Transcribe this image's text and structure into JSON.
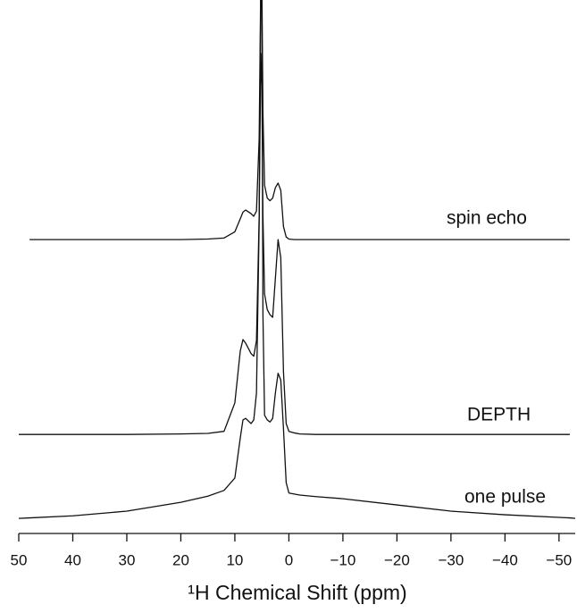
{
  "chart_data": {
    "type": "line",
    "xlabel": "¹H Chemical Shift (ppm)",
    "xlim": [
      50,
      -53
    ],
    "ylim": [
      0,
      100
    ],
    "xticks": [
      50,
      40,
      30,
      20,
      10,
      0,
      {
        "value": -10,
        "label": "−10"
      },
      {
        "value": -20,
        "label": "−20"
      },
      {
        "value": -30,
        "label": "−30"
      },
      {
        "value": -40,
        "label": "−40"
      },
      {
        "value": -50,
        "label": "−50"
      }
    ],
    "x": [
      50,
      48,
      40,
      30,
      20,
      15,
      12,
      10,
      9,
      8.5,
      8,
      7,
      6.5,
      6,
      5.5,
      5.2,
      5,
      4.8,
      4.5,
      4,
      3.5,
      3,
      2.5,
      2,
      1.5,
      1,
      0.5,
      0,
      -1,
      -2,
      -5,
      -10,
      -20,
      -30,
      -40,
      -50,
      -52,
      -53
    ],
    "series": [
      {
        "name": "spin echo",
        "color": "#111111",
        "values": [
          null,
          55.5,
          55.5,
          55.5,
          55.5,
          55.6,
          55.8,
          57,
          59.5,
          60.8,
          61.2,
          60.5,
          60,
          61,
          75,
          105,
          105,
          80,
          66,
          63.5,
          63,
          63.5,
          65.5,
          66.4,
          65,
          58,
          56,
          55.6,
          55.5,
          55.5,
          55.5,
          55.5,
          55.5,
          55.5,
          55.5,
          55.5,
          55.5,
          null
        ]
      },
      {
        "name": "DEPTH",
        "color": "#111111",
        "values": [
          17.9,
          17.9,
          17.9,
          17.9,
          18,
          18.1,
          18.5,
          24,
          34,
          36.2,
          35.5,
          33.5,
          33,
          36,
          60,
          91.4,
          85,
          60,
          45,
          42,
          41,
          40.5,
          48,
          55.5,
          52,
          30,
          20,
          18.5,
          18.2,
          18,
          17.9,
          17.9,
          17.9,
          17.9,
          17.9,
          17.9,
          17.9,
          null
        ]
      },
      {
        "name": "one pulse",
        "color": "#111111",
        "values": [
          1.7,
          1.8,
          2.2,
          3.1,
          4.8,
          6,
          7.1,
          9.5,
          17.2,
          20.7,
          21,
          20,
          20.7,
          25.9,
          58.6,
          105,
          100,
          41,
          21.6,
          20.7,
          20.3,
          21,
          25.9,
          29.7,
          28.4,
          19,
          8.6,
          6.6,
          6.4,
          6.2,
          5.9,
          5.5,
          4.3,
          3.1,
          2.4,
          1.9,
          1.8,
          1.7
        ]
      }
    ]
  }
}
